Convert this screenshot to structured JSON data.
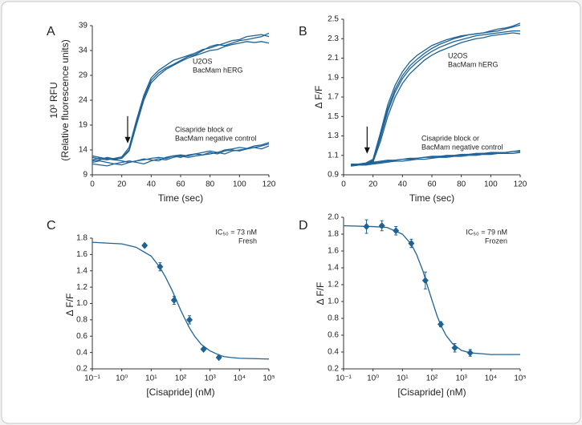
{
  "chart_data": [
    {
      "type": "line",
      "panel": "A",
      "ylabel": [
        "10³ RFU",
        "(Relative fluorescence units)"
      ],
      "xlabel": "Time (sec)",
      "xlim": [
        0,
        120
      ],
      "xticks": [
        0,
        20,
        40,
        60,
        80,
        100,
        120
      ],
      "ylim": [
        9,
        39
      ],
      "yticks": [
        9,
        14,
        19,
        24,
        29,
        34,
        39
      ],
      "annotations": [
        [
          "U2OS",
          "BacMam hERG"
        ],
        [
          "Cisapride block or",
          "BacMam negative control"
        ]
      ],
      "arrow": {
        "x": 24,
        "y": 15
      },
      "x": [
        0,
        5,
        10,
        15,
        20,
        25,
        30,
        35,
        40,
        45,
        50,
        55,
        60,
        65,
        70,
        75,
        80,
        85,
        90,
        95,
        100,
        105,
        110,
        115,
        120
      ],
      "series": [
        {
          "color": "#1f6396",
          "values": [
            12.5,
            12.2,
            12.0,
            12.3,
            12.6,
            14.5,
            20,
            25,
            28.5,
            30,
            31,
            32,
            32.5,
            33,
            33.5,
            34.2,
            34.5,
            35,
            35.5,
            36,
            36.2,
            36.8,
            37,
            37.2,
            36.8
          ]
        },
        {
          "color": "#1f6396",
          "values": [
            12.0,
            12.4,
            12.3,
            12.0,
            12.4,
            14.0,
            19.5,
            24.5,
            28,
            29.5,
            30.5,
            31.2,
            32,
            32.8,
            33.2,
            34,
            34.8,
            35.2,
            35,
            35.5,
            36,
            36.2,
            36.5,
            36.8,
            37.5
          ]
        },
        {
          "color": "#1f6396",
          "values": [
            11.8,
            12.0,
            12.5,
            12.2,
            12.3,
            13.8,
            19,
            24,
            27.5,
            29,
            30.2,
            31,
            31.8,
            32.5,
            33,
            33.5,
            34,
            34.2,
            34.8,
            35.2,
            35.5,
            35.8,
            35.6,
            35.8,
            35.5
          ]
        },
        {
          "color": "#1f6396",
          "values": [
            11.2,
            11.0,
            10.8,
            11.2,
            11.5,
            11.8,
            11.5,
            11.2,
            11.8,
            12.2,
            12.0,
            12.5,
            12.8,
            12.5,
            12.8,
            13.0,
            13.2,
            13.5,
            13.2,
            13.8,
            14.0,
            14.2,
            14.5,
            14.8,
            15.2
          ]
        },
        {
          "color": "#1f6396",
          "values": [
            11.5,
            11.8,
            11.5,
            11.2,
            11.0,
            11.5,
            11.8,
            12.2,
            12.0,
            11.8,
            12.5,
            12.8,
            12.5,
            13.0,
            13.2,
            13.0,
            13.5,
            13.2,
            13.8,
            14.0,
            13.8,
            14.2,
            14.5,
            14.2,
            14.8
          ]
        },
        {
          "color": "#1f6396",
          "values": [
            12.8,
            12.5,
            12.2,
            12.0,
            11.8,
            11.5,
            11.8,
            12.0,
            12.3,
            12.5,
            12.3,
            12.8,
            13.0,
            12.8,
            13.2,
            13.5,
            13.8,
            13.5,
            14.0,
            14.2,
            14.5,
            14.3,
            14.8,
            15.0,
            15.5
          ]
        }
      ]
    },
    {
      "type": "line",
      "panel": "B",
      "ylabel": [
        "Δ F/F"
      ],
      "xlabel": "Time (sec)",
      "xlim": [
        0,
        120
      ],
      "xticks": [
        0,
        20,
        40,
        60,
        80,
        100,
        120
      ],
      "ylim": [
        0.9,
        2.5
      ],
      "yticks": [
        0.9,
        1.1,
        1.3,
        1.5,
        1.7,
        1.9,
        2.1,
        2.3,
        2.5
      ],
      "annotations": [
        [
          "U2OS",
          "BacMam hERG"
        ],
        [
          "Cisapride block or",
          "BacMam negative control"
        ]
      ],
      "arrow": {
        "x": 16,
        "y": 1.1
      },
      "x": [
        5,
        10,
        15,
        20,
        25,
        30,
        35,
        40,
        45,
        50,
        55,
        60,
        65,
        70,
        75,
        80,
        85,
        90,
        95,
        100,
        105,
        110,
        115,
        120
      ],
      "series": [
        {
          "color": "#1f6396",
          "values": [
            1.0,
            1.0,
            1.01,
            1.05,
            1.3,
            1.58,
            1.78,
            1.92,
            2.02,
            2.09,
            2.15,
            2.2,
            2.24,
            2.27,
            2.3,
            2.32,
            2.34,
            2.35,
            2.36,
            2.37,
            2.38,
            2.4,
            2.42,
            2.44
          ]
        },
        {
          "color": "#1f6396",
          "values": [
            0.99,
            1.0,
            1.0,
            1.04,
            1.28,
            1.55,
            1.75,
            1.89,
            1.99,
            2.06,
            2.12,
            2.17,
            2.21,
            2.24,
            2.27,
            2.29,
            2.31,
            2.33,
            2.34,
            2.35,
            2.36,
            2.37,
            2.38,
            2.38
          ]
        },
        {
          "color": "#1f6396",
          "values": [
            1.01,
            1.01,
            1.02,
            1.06,
            1.33,
            1.62,
            1.82,
            1.96,
            2.06,
            2.13,
            2.18,
            2.23,
            2.26,
            2.29,
            2.31,
            2.33,
            2.34,
            2.35,
            2.36,
            2.38,
            2.4,
            2.41,
            2.43,
            2.46
          ]
        },
        {
          "color": "#1f6396",
          "values": [
            1.0,
            1.0,
            1.01,
            1.03,
            1.24,
            1.5,
            1.7,
            1.84,
            1.94,
            2.01,
            2.08,
            2.13,
            2.17,
            2.2,
            2.23,
            2.26,
            2.28,
            2.3,
            2.31,
            2.33,
            2.34,
            2.35,
            2.36,
            2.35
          ]
        },
        {
          "color": "#1f6396",
          "values": [
            1.0,
            1.01,
            1.01,
            1.02,
            1.03,
            1.04,
            1.05,
            1.06,
            1.06,
            1.07,
            1.08,
            1.08,
            1.09,
            1.09,
            1.1,
            1.1,
            1.11,
            1.11,
            1.12,
            1.12,
            1.13,
            1.13,
            1.14,
            1.14
          ]
        },
        {
          "color": "#1f6396",
          "values": [
            1.01,
            1.01,
            1.02,
            1.03,
            1.04,
            1.05,
            1.05,
            1.06,
            1.07,
            1.07,
            1.08,
            1.09,
            1.09,
            1.1,
            1.1,
            1.11,
            1.11,
            1.12,
            1.12,
            1.13,
            1.13,
            1.13,
            1.14,
            1.15
          ]
        },
        {
          "color": "#1f6396",
          "values": [
            0.99,
            1.0,
            1.0,
            1.01,
            1.02,
            1.03,
            1.04,
            1.04,
            1.05,
            1.06,
            1.06,
            1.07,
            1.08,
            1.08,
            1.09,
            1.09,
            1.1,
            1.1,
            1.11,
            1.11,
            1.12,
            1.12,
            1.12,
            1.13
          ]
        }
      ]
    },
    {
      "type": "scatter",
      "panel": "C",
      "ylabel": [
        "Δ F/F"
      ],
      "xlabel": "[Cisapride] (nM)",
      "log_x": true,
      "xlim": [
        0.1,
        100000
      ],
      "xticks": [
        {
          "value": 0.1,
          "label": "10⁻¹"
        },
        {
          "value": 1,
          "label": "10⁰"
        },
        {
          "value": 10,
          "label": "10¹"
        },
        {
          "value": 100,
          "label": "10²"
        },
        {
          "value": 1000,
          "label": "10³"
        },
        {
          "value": 10000,
          "label": "10⁴"
        },
        {
          "value": 100000,
          "label": "10⁵"
        }
      ],
      "ylim": [
        0.2,
        1.8
      ],
      "yticks": [
        0.2,
        0.4,
        0.6,
        0.8,
        {
          "value": 1,
          "label": "1.0"
        },
        1.2,
        1.4,
        1.6,
        1.8
      ],
      "annotations": [
        [
          "IC₅₀ = 73 nM",
          "Fresh"
        ]
      ],
      "series": [
        {
          "color": "#1f6396",
          "style": "points",
          "x": [
            6,
            20,
            60,
            200,
            600,
            2000
          ],
          "values": [
            1.71,
            1.45,
            1.04,
            0.8,
            0.44,
            0.34
          ],
          "errors": [
            0.02,
            0.05,
            0.05,
            0.05,
            0.02,
            0.02
          ]
        },
        {
          "color": "#1f6396",
          "style": "line",
          "x": [
            0.1,
            0.3,
            1,
            3,
            10,
            20,
            30,
            50,
            70,
            100,
            150,
            200,
            300,
            500,
            1000,
            2000,
            3000,
            5000,
            10000,
            100000
          ],
          "values": [
            1.75,
            1.74,
            1.73,
            1.69,
            1.58,
            1.44,
            1.33,
            1.17,
            1.05,
            0.92,
            0.79,
            0.7,
            0.6,
            0.5,
            0.42,
            0.37,
            0.35,
            0.34,
            0.33,
            0.32
          ]
        }
      ]
    },
    {
      "type": "scatter",
      "panel": "D",
      "ylabel": [
        "Δ F/F"
      ],
      "xlabel": "[Cisapride] (nM)",
      "log_x": true,
      "xlim": [
        0.1,
        100000
      ],
      "xticks": [
        {
          "value": 0.1,
          "label": "10⁻¹"
        },
        {
          "value": 1,
          "label": "10⁰"
        },
        {
          "value": 10,
          "label": "10¹"
        },
        {
          "value": 100,
          "label": "10²"
        },
        {
          "value": 1000,
          "label": "10³"
        },
        {
          "value": 10000,
          "label": "10⁴"
        },
        {
          "value": 100000,
          "label": "10⁵"
        }
      ],
      "ylim": [
        0.2,
        2.0
      ],
      "yticks": [
        0.2,
        0.4,
        0.6,
        0.8,
        {
          "value": 1,
          "label": "1.0"
        },
        1.2,
        1.4,
        1.6,
        1.8,
        {
          "value": 2,
          "label": "2.0"
        }
      ],
      "annotations": [
        [
          "IC₅₀ = 79 nM",
          "Frozen"
        ]
      ],
      "series": [
        {
          "color": "#1f6396",
          "style": "points",
          "x": [
            0.6,
            2,
            6,
            20,
            60,
            200,
            600,
            2000
          ],
          "values": [
            1.89,
            1.9,
            1.84,
            1.69,
            1.25,
            0.73,
            0.45,
            0.39
          ],
          "errors": [
            0.08,
            0.06,
            0.05,
            0.05,
            0.1,
            0.03,
            0.05,
            0.04
          ]
        },
        {
          "color": "#1f6396",
          "style": "line",
          "x": [
            0.1,
            1,
            3,
            10,
            20,
            30,
            50,
            70,
            100,
            150,
            200,
            300,
            500,
            1000,
            2000,
            5000,
            10000,
            100000
          ],
          "values": [
            1.9,
            1.89,
            1.88,
            1.8,
            1.68,
            1.56,
            1.36,
            1.19,
            1.02,
            0.83,
            0.72,
            0.6,
            0.5,
            0.42,
            0.39,
            0.38,
            0.37,
            0.37
          ]
        }
      ]
    }
  ]
}
